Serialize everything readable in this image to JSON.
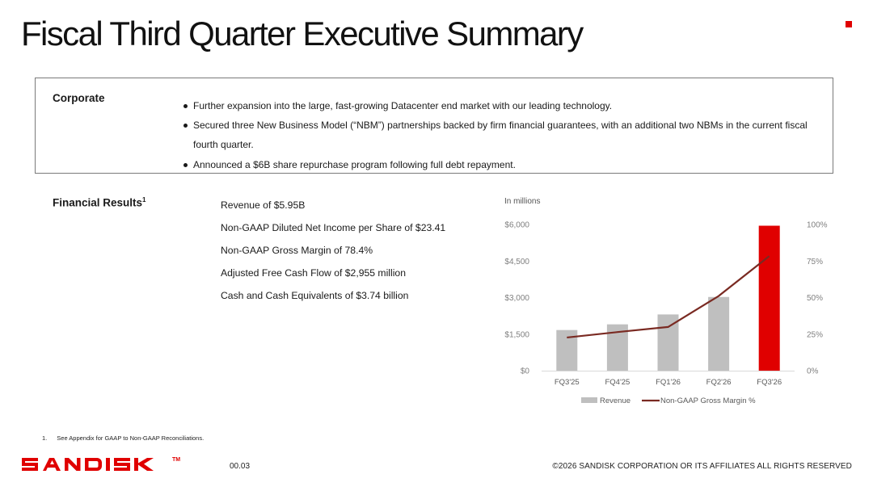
{
  "slide": {
    "title": "Fiscal Third Quarter Executive Summary",
    "accent_color": "#e00000"
  },
  "corporate": {
    "label": "Corporate",
    "bullets": [
      "Further expansion into the large, fast-growing Datacenter end market with our leading technology.",
      "Secured three New Business Model (“NBM”) partnerships backed by firm financial guarantees, with an additional two NBMs in the current fiscal fourth quarter.",
      "Announced a $6B share repurchase program following full debt repayment."
    ]
  },
  "financial": {
    "label": "Financial Results",
    "label_sup": "1",
    "items": [
      "Revenue of $5.95B",
      "Non-GAAP Diluted Net Income per Share of $23.41",
      "Non-GAAP Gross Margin of 78.4%",
      "Adjusted Free Cash Flow of $2,955 million",
      "Cash and Cash Equivalents of $3.74 billion"
    ]
  },
  "chart_data": {
    "type": "bar",
    "unit_label": "In millions",
    "categories": [
      "FQ3'25",
      "FQ4'25",
      "FQ1'26",
      "FQ2'26",
      "FQ3'26"
    ],
    "series": [
      {
        "name": "Revenue",
        "type": "bar",
        "axis": "left",
        "values": [
          1668,
          1901,
          2308,
          3025,
          5950
        ],
        "colors": [
          "#bfbfbf",
          "#bfbfbf",
          "#bfbfbf",
          "#bfbfbf",
          "#e00000"
        ]
      },
      {
        "name": "Non-GAAP Gross Margin %",
        "type": "line",
        "axis": "right",
        "values": [
          22.7,
          26.4,
          29.9,
          51.1,
          78.4
        ],
        "color": "#7a2a22"
      }
    ],
    "y_left": {
      "ticks": [
        "$0",
        "$1,500",
        "$3,000",
        "$4,500",
        "$6,000"
      ],
      "min": 0,
      "max": 6000
    },
    "y_right": {
      "ticks": [
        "0%",
        "25%",
        "50%",
        "75%",
        "100%"
      ],
      "min": 0,
      "max": 100
    },
    "legend_position": "bottom",
    "grid": false
  },
  "footnote": {
    "number": "1.",
    "text": "See Appendix for GAAP to Non-GAAP Reconciliations."
  },
  "footer": {
    "logo_text": "SANDISK",
    "trademark": "TM",
    "page_number": "00.03",
    "copyright": "©2026 SANDISK CORPORATION OR ITS AFFILIATES ALL RIGHTS RESERVED"
  }
}
